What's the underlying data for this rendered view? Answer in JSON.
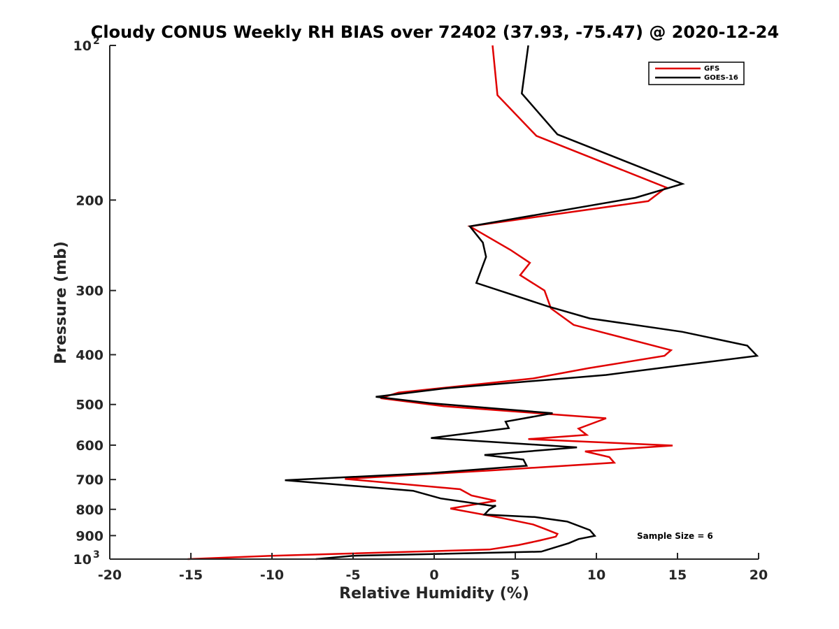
{
  "chart_data": {
    "type": "line",
    "title": "Cloudy CONUS Weekly RH BIAS over 72402 (37.93, -75.47) @ 2020-12-24",
    "xlabel": "Relative Humidity (%)",
    "ylabel": "Pressure (mb)",
    "xlim": [
      -20,
      20
    ],
    "ylim": [
      100,
      1000
    ],
    "y_scale": "log",
    "y_reversed": true,
    "grid": false,
    "legend_position": "top-right",
    "x_ticks": [
      "-20",
      "-15",
      "-10",
      "-5",
      "0",
      "5",
      "10",
      "15",
      "20"
    ],
    "y_ticks": [
      {
        "value": 100,
        "base": "10",
        "exp": "2"
      },
      {
        "value": 200,
        "label": "200"
      },
      {
        "value": 300,
        "label": "300"
      },
      {
        "value": 400,
        "label": "400"
      },
      {
        "value": 500,
        "label": "500"
      },
      {
        "value": 600,
        "label": "600"
      },
      {
        "value": 700,
        "label": "700"
      },
      {
        "value": 800,
        "label": "800"
      },
      {
        "value": 900,
        "label": "900"
      },
      {
        "value": 1000,
        "base": "10",
        "exp": "3"
      }
    ],
    "annotation": "Sample Size = 6",
    "series": [
      {
        "name": "GFS",
        "color": "#e00000",
        "points": [
          [
            3.6,
            100
          ],
          [
            3.9,
            125
          ],
          [
            6.3,
            150
          ],
          [
            14.3,
            189
          ],
          [
            13.2,
            201
          ],
          [
            2.2,
            225
          ],
          [
            4.7,
            250
          ],
          [
            5.9,
            265
          ],
          [
            5.3,
            280
          ],
          [
            6.8,
            300
          ],
          [
            7.2,
            325
          ],
          [
            8.6,
            350
          ],
          [
            14.6,
            392
          ],
          [
            14.2,
            402
          ],
          [
            9.5,
            425
          ],
          [
            6.1,
            445
          ],
          [
            -2.2,
            474
          ],
          [
            -3.3,
            486
          ],
          [
            0.6,
            504
          ],
          [
            10.6,
            532
          ],
          [
            8.9,
            557
          ],
          [
            9.4,
            573
          ],
          [
            5.8,
            584
          ],
          [
            14.7,
            601
          ],
          [
            9.3,
            617
          ],
          [
            10.8,
            633
          ],
          [
            11.1,
            649
          ],
          [
            3.5,
            672
          ],
          [
            -5.5,
            698
          ],
          [
            1.6,
            731
          ],
          [
            2.3,
            752
          ],
          [
            3.8,
            770
          ],
          [
            1.0,
            797
          ],
          [
            4.2,
            832
          ],
          [
            6.1,
            856
          ],
          [
            6.8,
            873
          ],
          [
            7.6,
            893
          ],
          [
            7.5,
            904
          ],
          [
            6.5,
            920
          ],
          [
            5.2,
            939
          ],
          [
            3.4,
            958
          ],
          [
            -10.0,
            985
          ],
          [
            -15.2,
            1000
          ]
        ]
      },
      {
        "name": "GOES-16",
        "color": "#000000",
        "points": [
          [
            5.8,
            100
          ],
          [
            5.4,
            124
          ],
          [
            7.6,
            149
          ],
          [
            15.3,
            186
          ],
          [
            12.4,
            198
          ],
          [
            2.2,
            225
          ],
          [
            3.0,
            242
          ],
          [
            3.2,
            258
          ],
          [
            2.6,
            290
          ],
          [
            7.0,
            322
          ],
          [
            9.6,
            340
          ],
          [
            15.3,
            361
          ],
          [
            19.3,
            384
          ],
          [
            19.9,
            402
          ],
          [
            15.6,
            418
          ],
          [
            10.6,
            438
          ],
          [
            0.7,
            465
          ],
          [
            -3.6,
            483
          ],
          [
            -0.3,
            497
          ],
          [
            7.3,
            520
          ],
          [
            4.4,
            540
          ],
          [
            4.6,
            556
          ],
          [
            -0.2,
            581
          ],
          [
            8.8,
            606
          ],
          [
            3.1,
            627
          ],
          [
            5.5,
            640
          ],
          [
            5.7,
            658
          ],
          [
            -0.2,
            680
          ],
          [
            -9.2,
            702
          ],
          [
            -1.3,
            736
          ],
          [
            0.4,
            762
          ],
          [
            3.6,
            788
          ],
          [
            3.8,
            787
          ],
          [
            3.4,
            800
          ],
          [
            3.1,
            819
          ],
          [
            6.2,
            828
          ],
          [
            8.2,
            845
          ],
          [
            9.6,
            878
          ],
          [
            9.9,
            901
          ],
          [
            8.9,
            914
          ],
          [
            8.3,
            931
          ],
          [
            6.6,
            967
          ],
          [
            -5.0,
            985
          ],
          [
            -7.3,
            1000
          ]
        ]
      }
    ]
  }
}
